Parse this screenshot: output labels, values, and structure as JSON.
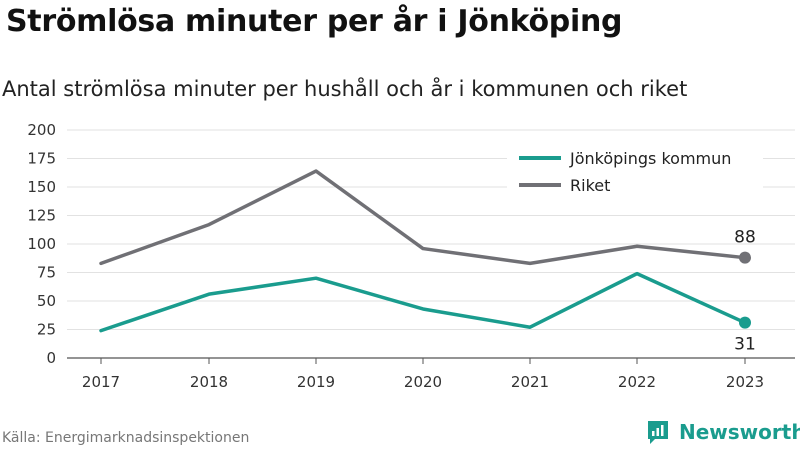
{
  "title": "Strömlösa minuter per år i Jönköping",
  "subtitle": "Antal strömlösa minuter per hushåll och år i kommunen och riket",
  "source": "Källa: Energimarknadsinspektionen",
  "brand": {
    "name": "Newsworthy",
    "color": "#1a9c8e"
  },
  "chart_data": {
    "type": "line",
    "x": [
      "2017",
      "2018",
      "2019",
      "2020",
      "2021",
      "2022",
      "2023"
    ],
    "ylim": [
      0,
      200
    ],
    "yticks": [
      0,
      25,
      50,
      75,
      100,
      125,
      150,
      175,
      200
    ],
    "grid": true,
    "legend": "top-right",
    "series": [
      {
        "name": "Jönköpings kommun",
        "color": "#1a9c8e",
        "values": [
          24,
          56,
          70,
          43,
          27,
          74,
          31
        ],
        "end_label": "31",
        "end_label_pos": "below"
      },
      {
        "name": "Riket",
        "color": "#707075",
        "values": [
          83,
          117,
          164,
          96,
          83,
          98,
          88
        ],
        "end_label": "88",
        "end_label_pos": "above"
      }
    ]
  }
}
